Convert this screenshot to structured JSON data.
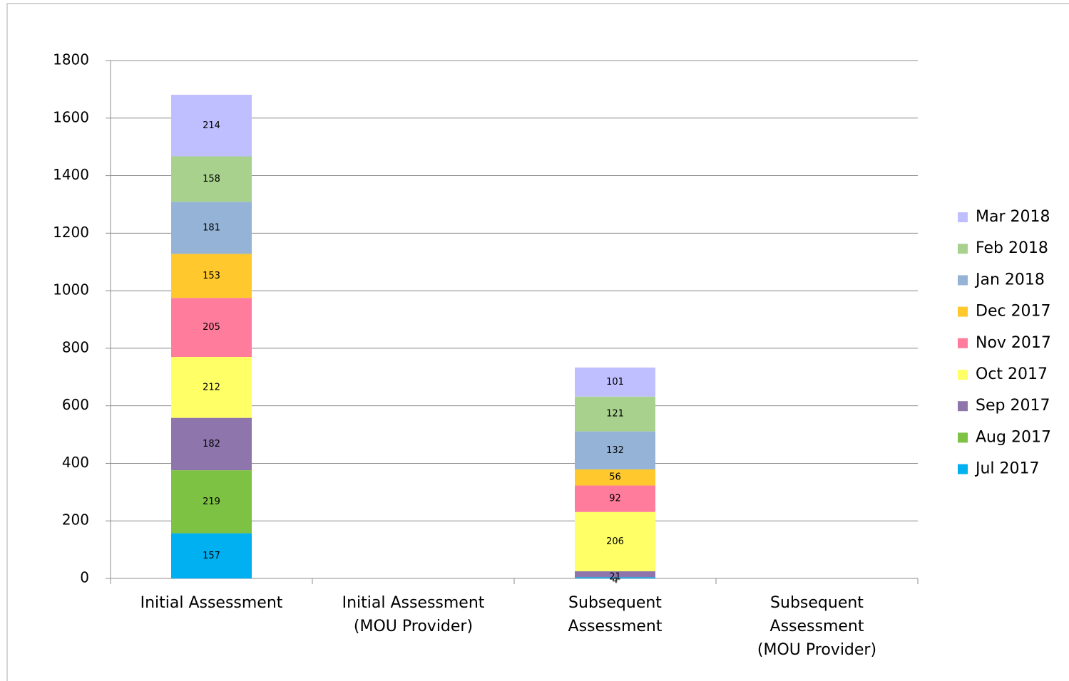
{
  "chart_data": {
    "type": "stacked_bar",
    "categories": [
      "Initial Assessment",
      "Initial Assessment\n(MOU Provider)",
      "Subsequent\nAssessment",
      "Subsequent\nAssessment\n(MOU Provider)"
    ],
    "series": [
      {
        "name": "Jul 2017",
        "color": "#00b0f0",
        "values": [
          157,
          null,
          4,
          null
        ]
      },
      {
        "name": "Aug 2017",
        "color": "#7dc242",
        "values": [
          219,
          null,
          null,
          null
        ]
      },
      {
        "name": "Sep 2017",
        "color": "#8e76ad",
        "values": [
          182,
          null,
          21,
          null
        ]
      },
      {
        "name": "Oct 2017",
        "color": "#ffff66",
        "values": [
          212,
          null,
          206,
          null
        ]
      },
      {
        "name": "Nov 2017",
        "color": "#ff7c9c",
        "values": [
          205,
          null,
          92,
          null
        ]
      },
      {
        "name": "Dec 2017",
        "color": "#ffc92e",
        "values": [
          153,
          null,
          56,
          null
        ]
      },
      {
        "name": "Jan 2018",
        "color": "#95b3d7",
        "values": [
          181,
          null,
          132,
          null
        ]
      },
      {
        "name": "Feb 2018",
        "color": "#a9d18e",
        "values": [
          158,
          null,
          121,
          null
        ]
      },
      {
        "name": "Mar 2018",
        "color": "#bfbfff",
        "values": [
          214,
          null,
          101,
          null
        ]
      }
    ],
    "ylim": [
      0,
      1800
    ],
    "yticks": [
      0,
      200,
      400,
      600,
      800,
      1000,
      1200,
      1400,
      1600,
      1800
    ],
    "grid": true,
    "legend": "right"
  }
}
